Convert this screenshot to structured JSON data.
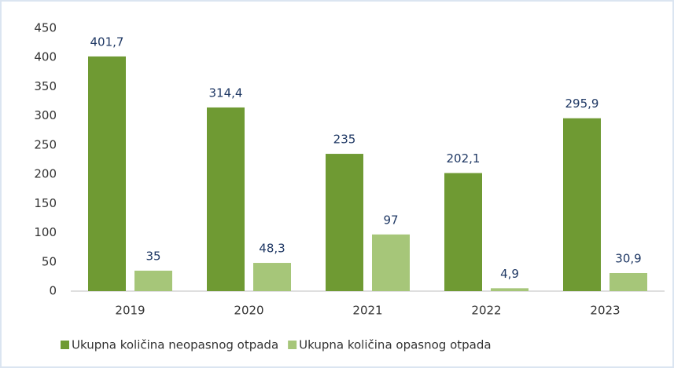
{
  "chart_data": {
    "type": "bar",
    "categories": [
      "2019",
      "2020",
      "2021",
      "2022",
      "2023"
    ],
    "series": [
      {
        "name": "Ukupna količina neopasnog otpada",
        "color": "#6f9a33",
        "values": [
          401.7,
          314.4,
          235,
          202.1,
          295.9
        ],
        "value_labels": [
          "401,7",
          "314,4",
          "235",
          "202,1",
          "295,9"
        ]
      },
      {
        "name": "Ukupna količina opasnog otpada",
        "color": "#a6c679",
        "values": [
          35,
          48.3,
          97,
          4.9,
          30.9
        ],
        "value_labels": [
          "35",
          "48,3",
          "97",
          "4,9",
          "30,9"
        ]
      }
    ],
    "ylim": [
      0,
      450
    ],
    "yticks": [
      0,
      50,
      100,
      150,
      200,
      250,
      300,
      350,
      400,
      450
    ],
    "grid": false,
    "legend": "bottom"
  }
}
